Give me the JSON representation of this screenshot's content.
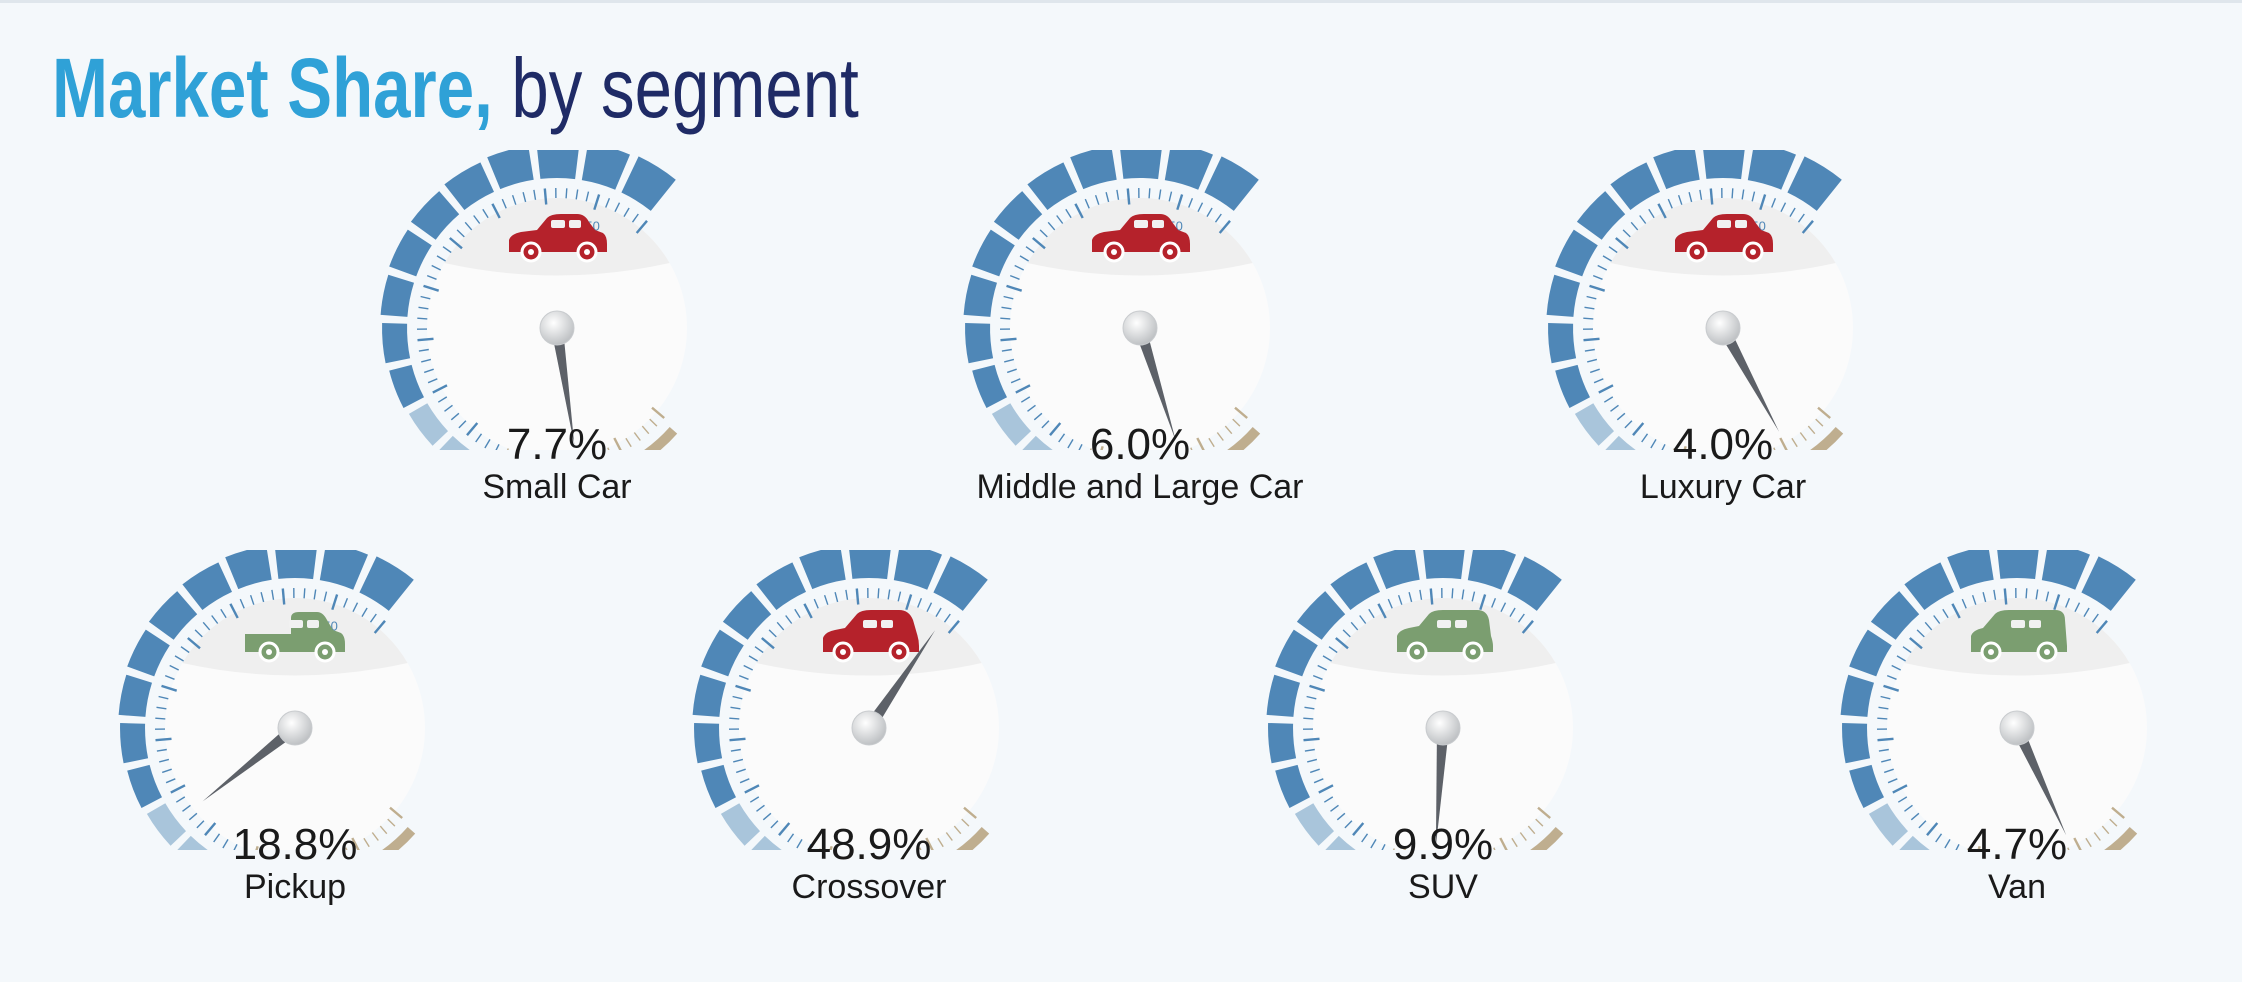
{
  "title": {
    "main": "Market Share,",
    "sub": "by segment"
  },
  "colors": {
    "blue": "#4f87b7",
    "blue_light": "#a9c5db",
    "tan": "#bfae8f",
    "needle": "#5d6168",
    "car_red": "#b5222b",
    "car_green": "#7b9e70",
    "title_blue": "#2fa1d7",
    "title_navy": "#1f2b66"
  },
  "chart_data": {
    "type": "gauge",
    "title": "Market Share, by segment",
    "scale_label": "50",
    "unit": "%",
    "gauges": [
      {
        "label": "Small Car",
        "value_text": "7.7%",
        "value": 7.7,
        "icon": "sedan-icon",
        "icon_color": "red"
      },
      {
        "label": "Middle and Large Car",
        "value_text": "6.0%",
        "value": 6.0,
        "icon": "sedan-icon",
        "icon_color": "red"
      },
      {
        "label": "Luxury Car",
        "value_text": "4.0%",
        "value": 4.0,
        "icon": "sedan-icon",
        "icon_color": "red"
      },
      {
        "label": "Pickup",
        "value_text": "18.8%",
        "value": 18.8,
        "icon": "pickup-icon",
        "icon_color": "green"
      },
      {
        "label": "Crossover",
        "value_text": "48.9%",
        "value": 48.9,
        "icon": "hatchback-icon",
        "icon_color": "red"
      },
      {
        "label": "SUV",
        "value_text": "9.9%",
        "value": 9.9,
        "icon": "suv-icon",
        "icon_color": "green"
      },
      {
        "label": "Van",
        "value_text": "4.7%",
        "value": 4.7,
        "icon": "van-icon",
        "icon_color": "green"
      }
    ]
  }
}
